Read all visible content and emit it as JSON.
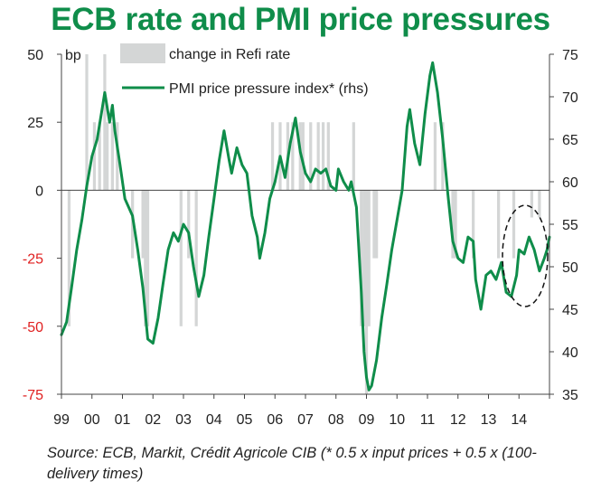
{
  "chart_data": {
    "type": "bar+line",
    "title": "ECB rate and PMI price pressures",
    "source": "Source: ECB, Markit, Crédit Agricole CIB (* 0.5 x input prices + 0.5 x (100-delivery times)",
    "left_unit_label": "bp",
    "x_ticks": [
      "99",
      "00",
      "01",
      "02",
      "03",
      "04",
      "05",
      "06",
      "07",
      "08",
      "09",
      "10",
      "11",
      "12",
      "13",
      "14"
    ],
    "x_range": [
      1999.0,
      2015.0
    ],
    "y_left": {
      "range": [
        -75,
        50
      ],
      "ticks": [
        50,
        25,
        0,
        -25,
        -50,
        -75
      ],
      "negative_color": "#e02020",
      "positive_color": "#222222"
    },
    "y_right": {
      "range": [
        35,
        75
      ],
      "ticks": [
        75,
        70,
        65,
        60,
        55,
        50,
        45,
        40,
        35
      ]
    },
    "colors": {
      "bars": "#d4d6d6",
      "line": "#0f8d4a",
      "title": "#0f8d4a"
    },
    "legend": {
      "bar_label": "change in Refi rate",
      "line_label": "PMI price pressure index* (rhs)"
    },
    "annotation": "dashed ellipse around latest values",
    "series": [
      {
        "name": "change in Refi rate",
        "type": "bar",
        "axis": "left",
        "data": [
          [
            1999.25,
            -50
          ],
          [
            1999.83,
            50
          ],
          [
            2000.08,
            25
          ],
          [
            2000.25,
            25
          ],
          [
            2000.42,
            50
          ],
          [
            2000.5,
            25
          ],
          [
            2000.67,
            25
          ],
          [
            2000.83,
            25
          ],
          [
            2001.33,
            -25
          ],
          [
            2001.67,
            -25
          ],
          [
            2001.75,
            -50
          ],
          [
            2001.83,
            -50
          ],
          [
            2002.92,
            -50
          ],
          [
            2003.17,
            -25
          ],
          [
            2003.42,
            -50
          ],
          [
            2005.92,
            25
          ],
          [
            2006.17,
            25
          ],
          [
            2006.42,
            25
          ],
          [
            2006.58,
            25
          ],
          [
            2006.83,
            25
          ],
          [
            2006.92,
            25
          ],
          [
            2007.17,
            25
          ],
          [
            2007.42,
            25
          ],
          [
            2007.58,
            25
          ],
          [
            2007.75,
            25
          ],
          [
            2008.58,
            25
          ],
          [
            2008.83,
            -50
          ],
          [
            2008.92,
            -50
          ],
          [
            2009.0,
            -75
          ],
          [
            2009.08,
            -50
          ],
          [
            2009.25,
            -25
          ],
          [
            2009.33,
            -25
          ],
          [
            2011.25,
            25
          ],
          [
            2011.5,
            25
          ],
          [
            2011.83,
            -25
          ],
          [
            2011.92,
            -25
          ],
          [
            2012.5,
            -25
          ],
          [
            2013.33,
            -25
          ],
          [
            2013.83,
            -25
          ],
          [
            2014.42,
            -10
          ],
          [
            2014.67,
            -10
          ]
        ]
      },
      {
        "name": "PMI price pressure index* (rhs)",
        "type": "line",
        "axis": "right",
        "data": [
          [
            1999.0,
            42.0
          ],
          [
            1999.17,
            43.5
          ],
          [
            1999.33,
            47.5
          ],
          [
            1999.5,
            52.0
          ],
          [
            1999.67,
            55.5
          ],
          [
            1999.83,
            59.5
          ],
          [
            2000.0,
            63.0
          ],
          [
            2000.17,
            65.0
          ],
          [
            2000.33,
            68.5
          ],
          [
            2000.42,
            70.5
          ],
          [
            2000.58,
            67.0
          ],
          [
            2000.67,
            69.0
          ],
          [
            2000.75,
            66.0
          ],
          [
            2000.92,
            62.0
          ],
          [
            2001.08,
            58.0
          ],
          [
            2001.33,
            56.0
          ],
          [
            2001.5,
            52.0
          ],
          [
            2001.67,
            47.5
          ],
          [
            2001.83,
            41.5
          ],
          [
            2002.0,
            41.0
          ],
          [
            2002.17,
            44.0
          ],
          [
            2002.33,
            48.0
          ],
          [
            2002.5,
            52.0
          ],
          [
            2002.67,
            54.0
          ],
          [
            2002.83,
            53.0
          ],
          [
            2003.0,
            55.0
          ],
          [
            2003.17,
            54.0
          ],
          [
            2003.33,
            50.0
          ],
          [
            2003.5,
            46.5
          ],
          [
            2003.67,
            49.0
          ],
          [
            2003.83,
            53.5
          ],
          [
            2004.0,
            58.0
          ],
          [
            2004.17,
            62.5
          ],
          [
            2004.33,
            66.0
          ],
          [
            2004.5,
            62.5
          ],
          [
            2004.58,
            61.0
          ],
          [
            2004.75,
            64.0
          ],
          [
            2004.92,
            62.0
          ],
          [
            2005.08,
            61.0
          ],
          [
            2005.25,
            56.0
          ],
          [
            2005.42,
            53.5
          ],
          [
            2005.5,
            51.0
          ],
          [
            2005.67,
            54.0
          ],
          [
            2005.83,
            58.0
          ],
          [
            2006.0,
            60.0
          ],
          [
            2006.17,
            63.0
          ],
          [
            2006.33,
            60.5
          ],
          [
            2006.5,
            64.5
          ],
          [
            2006.67,
            67.5
          ],
          [
            2006.83,
            63.5
          ],
          [
            2007.0,
            61.0
          ],
          [
            2007.17,
            60.0
          ],
          [
            2007.33,
            61.5
          ],
          [
            2007.5,
            61.0
          ],
          [
            2007.67,
            61.5
          ],
          [
            2007.83,
            59.5
          ],
          [
            2008.0,
            59.0
          ],
          [
            2008.08,
            61.5
          ],
          [
            2008.25,
            60.0
          ],
          [
            2008.42,
            59.0
          ],
          [
            2008.5,
            60.0
          ],
          [
            2008.67,
            57.0
          ],
          [
            2008.83,
            47.0
          ],
          [
            2008.92,
            40.0
          ],
          [
            2009.0,
            37.0
          ],
          [
            2009.08,
            35.5
          ],
          [
            2009.17,
            36.0
          ],
          [
            2009.33,
            39.0
          ],
          [
            2009.5,
            44.0
          ],
          [
            2009.67,
            48.0
          ],
          [
            2009.83,
            52.0
          ],
          [
            2010.0,
            55.5
          ],
          [
            2010.17,
            59.0
          ],
          [
            2010.33,
            66.5
          ],
          [
            2010.42,
            68.5
          ],
          [
            2010.58,
            64.5
          ],
          [
            2010.75,
            62.0
          ],
          [
            2010.92,
            68.0
          ],
          [
            2011.08,
            72.5
          ],
          [
            2011.17,
            74.0
          ],
          [
            2011.33,
            70.5
          ],
          [
            2011.5,
            65.0
          ],
          [
            2011.67,
            58.5
          ],
          [
            2011.83,
            53.0
          ],
          [
            2012.0,
            51.0
          ],
          [
            2012.17,
            50.5
          ],
          [
            2012.33,
            53.5
          ],
          [
            2012.5,
            53.0
          ],
          [
            2012.58,
            48.5
          ],
          [
            2012.75,
            45.0
          ],
          [
            2012.92,
            49.0
          ],
          [
            2013.08,
            49.5
          ],
          [
            2013.25,
            48.5
          ],
          [
            2013.42,
            50.5
          ],
          [
            2013.58,
            47.0
          ],
          [
            2013.75,
            46.5
          ],
          [
            2013.92,
            49.0
          ],
          [
            2014.0,
            52.0
          ],
          [
            2014.17,
            51.5
          ],
          [
            2014.33,
            53.5
          ],
          [
            2014.5,
            52.0
          ],
          [
            2014.67,
            49.5
          ],
          [
            2014.83,
            51.0
          ],
          [
            2014.92,
            52.0
          ],
          [
            2015.0,
            53.5
          ]
        ]
      }
    ]
  }
}
